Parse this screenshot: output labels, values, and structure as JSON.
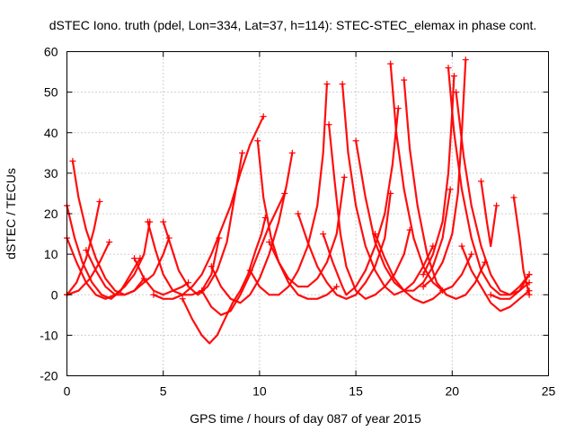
{
  "chart_data": {
    "type": "scatter",
    "title": "dSTEC Iono. truth (pdel, Lon=334, Lat=37, h=114): STEC-STEC_elemax in phase cont.",
    "xlabel": "GPS time / hours of day 087 of year 2015",
    "ylabel": "dSTEC  / TECUs",
    "xlim": [
      0,
      25
    ],
    "ylim": [
      -20,
      60
    ],
    "xticks": [
      0,
      5,
      10,
      15,
      20,
      25
    ],
    "yticks": [
      -20,
      -10,
      0,
      10,
      20,
      30,
      40,
      50,
      60
    ],
    "grid": true,
    "marker": "+",
    "color": "#ff0000",
    "series": [
      {
        "points": [
          [
            0.0,
            14
          ],
          [
            0.5,
            8
          ],
          [
            1.0,
            3
          ],
          [
            1.5,
            0
          ],
          [
            2.0,
            -1
          ],
          [
            2.5,
            0
          ],
          [
            3.0,
            2
          ],
          [
            3.5,
            5
          ],
          [
            4.0,
            10
          ],
          [
            4.3,
            18
          ]
        ]
      },
      {
        "points": [
          [
            0.0,
            22
          ],
          [
            0.4,
            14
          ],
          [
            0.8,
            8
          ],
          [
            1.3,
            3
          ],
          [
            1.8,
            0
          ],
          [
            2.3,
            -1
          ],
          [
            2.8,
            1
          ],
          [
            3.3,
            5
          ],
          [
            3.8,
            9
          ]
        ]
      },
      {
        "points": [
          [
            0.3,
            33
          ],
          [
            0.6,
            24
          ],
          [
            1.0,
            16
          ],
          [
            1.5,
            9
          ],
          [
            2.0,
            4
          ],
          [
            2.5,
            1
          ],
          [
            3.0,
            0
          ],
          [
            3.5,
            1
          ],
          [
            4.0,
            4
          ]
        ]
      },
      {
        "points": [
          [
            0.0,
            0
          ],
          [
            0.5,
            3
          ],
          [
            1.0,
            9
          ],
          [
            1.4,
            16
          ],
          [
            1.7,
            23
          ]
        ]
      },
      {
        "points": [
          [
            0.0,
            0
          ],
          [
            0.6,
            1
          ],
          [
            1.2,
            4
          ],
          [
            1.7,
            8
          ],
          [
            2.2,
            13
          ]
        ]
      },
      {
        "points": [
          [
            1.0,
            11
          ],
          [
            1.5,
            6
          ],
          [
            2.0,
            2
          ],
          [
            2.5,
            0
          ],
          [
            3.0,
            0
          ],
          [
            3.5,
            1
          ],
          [
            4.0,
            3
          ],
          [
            4.5,
            5
          ],
          [
            5.0,
            10
          ],
          [
            5.3,
            14
          ]
        ]
      },
      {
        "points": [
          [
            3.5,
            9
          ],
          [
            4.0,
            4
          ],
          [
            4.5,
            1
          ],
          [
            5.0,
            0
          ],
          [
            5.5,
            1
          ],
          [
            6.0,
            2
          ],
          [
            6.3,
            3
          ]
        ]
      },
      {
        "points": [
          [
            4.2,
            18
          ],
          [
            4.6,
            11
          ],
          [
            5.0,
            5
          ],
          [
            5.5,
            1
          ],
          [
            6.0,
            0
          ],
          [
            6.5,
            0
          ],
          [
            7.0,
            1
          ],
          [
            7.5,
            5
          ],
          [
            7.9,
            14
          ]
        ]
      },
      {
        "points": [
          [
            5.0,
            18
          ],
          [
            5.4,
            12
          ],
          [
            5.8,
            6
          ],
          [
            6.3,
            2
          ],
          [
            6.8,
            0
          ],
          [
            7.3,
            2
          ],
          [
            7.8,
            6
          ],
          [
            8.3,
            13
          ],
          [
            8.7,
            24
          ],
          [
            9.1,
            35
          ]
        ]
      },
      {
        "points": [
          [
            4.5,
            0
          ],
          [
            5.0,
            -1
          ],
          [
            5.5,
            -1
          ],
          [
            6.0,
            0
          ],
          [
            6.5,
            2
          ],
          [
            7.0,
            5
          ],
          [
            7.5,
            10
          ],
          [
            8.0,
            16
          ],
          [
            8.5,
            22
          ],
          [
            9.0,
            30
          ],
          [
            9.5,
            37
          ],
          [
            10.0,
            42
          ],
          [
            10.2,
            44
          ]
        ]
      },
      {
        "points": [
          [
            6.0,
            -1
          ],
          [
            6.5,
            -6
          ],
          [
            7.0,
            -10
          ],
          [
            7.4,
            -12
          ],
          [
            7.8,
            -10
          ],
          [
            8.2,
            -6
          ],
          [
            8.6,
            -2
          ],
          [
            9.0,
            1
          ],
          [
            9.4,
            5
          ],
          [
            9.8,
            11
          ],
          [
            10.1,
            15
          ],
          [
            10.3,
            19
          ]
        ]
      },
      {
        "points": [
          [
            7.0,
            1
          ],
          [
            7.5,
            -3
          ],
          [
            8.0,
            -5
          ],
          [
            8.5,
            -4
          ],
          [
            9.0,
            0
          ],
          [
            9.5,
            5
          ],
          [
            10.0,
            11
          ],
          [
            10.5,
            17
          ],
          [
            11.0,
            22
          ],
          [
            11.3,
            25
          ]
        ]
      },
      {
        "points": [
          [
            7.5,
            7
          ],
          [
            8.0,
            2
          ],
          [
            8.5,
            -1
          ],
          [
            9.0,
            -2
          ],
          [
            9.5,
            0
          ],
          [
            10.0,
            4
          ],
          [
            10.5,
            10
          ],
          [
            11.0,
            18
          ],
          [
            11.4,
            27
          ],
          [
            11.7,
            35
          ]
        ]
      },
      {
        "points": [
          [
            9.5,
            6
          ],
          [
            10.0,
            2
          ],
          [
            10.5,
            0
          ],
          [
            11.0,
            0
          ],
          [
            11.5,
            2
          ],
          [
            12.0,
            6
          ],
          [
            12.5,
            12
          ],
          [
            13.0,
            22
          ],
          [
            13.3,
            35
          ],
          [
            13.5,
            52
          ]
        ]
      },
      {
        "points": [
          [
            9.9,
            38
          ],
          [
            10.2,
            24
          ],
          [
            10.6,
            14
          ],
          [
            11.0,
            8
          ],
          [
            11.5,
            4
          ],
          [
            12.0,
            2
          ],
          [
            12.5,
            2
          ],
          [
            13.0,
            4
          ],
          [
            13.5,
            8
          ],
          [
            14.0,
            15
          ],
          [
            14.4,
            29
          ]
        ]
      },
      {
        "points": [
          [
            10.5,
            13
          ],
          [
            11.0,
            8
          ],
          [
            11.5,
            3
          ],
          [
            12.0,
            0
          ],
          [
            12.5,
            -1
          ],
          [
            13.0,
            -1
          ],
          [
            13.5,
            0
          ],
          [
            14.0,
            2
          ]
        ]
      },
      {
        "points": [
          [
            12.0,
            20
          ],
          [
            12.5,
            13
          ],
          [
            13.0,
            7
          ],
          [
            13.5,
            3
          ],
          [
            14.0,
            0
          ],
          [
            14.5,
            -1
          ],
          [
            15.0,
            0
          ],
          [
            15.5,
            3
          ],
          [
            16.0,
            7
          ],
          [
            16.5,
            14
          ],
          [
            16.8,
            25
          ]
        ]
      },
      {
        "points": [
          [
            13.3,
            15
          ],
          [
            13.8,
            8
          ],
          [
            14.3,
            2
          ],
          [
            14.5,
            0
          ],
          [
            15.0,
            2
          ],
          [
            15.5,
            6
          ],
          [
            16.0,
            12
          ],
          [
            16.5,
            20
          ],
          [
            16.9,
            32
          ],
          [
            17.2,
            46
          ]
        ]
      },
      {
        "points": [
          [
            13.6,
            42
          ],
          [
            13.9,
            28
          ],
          [
            14.2,
            15
          ],
          [
            14.5,
            7
          ],
          [
            15.0,
            1
          ],
          [
            15.5,
            -1
          ],
          [
            16.0,
            0
          ],
          [
            16.5,
            2
          ],
          [
            17.0,
            5
          ],
          [
            17.5,
            10
          ],
          [
            17.8,
            16
          ]
        ]
      },
      {
        "points": [
          [
            14.3,
            52
          ],
          [
            14.6,
            35
          ],
          [
            15.0,
            22
          ],
          [
            15.5,
            12
          ],
          [
            16.0,
            6
          ],
          [
            16.5,
            2
          ],
          [
            17.0,
            0
          ],
          [
            17.5,
            1
          ],
          [
            18.0,
            3
          ],
          [
            18.5,
            7
          ],
          [
            19.0,
            12
          ]
        ]
      },
      {
        "points": [
          [
            15.0,
            38
          ],
          [
            15.5,
            24
          ],
          [
            16.0,
            13
          ],
          [
            16.5,
            7
          ],
          [
            17.0,
            3
          ],
          [
            17.5,
            1
          ],
          [
            18.0,
            1
          ],
          [
            18.5,
            3
          ],
          [
            19.0,
            7
          ],
          [
            19.5,
            14
          ],
          [
            19.9,
            26
          ]
        ]
      },
      {
        "points": [
          [
            16.8,
            57
          ],
          [
            17.1,
            40
          ],
          [
            17.5,
            26
          ],
          [
            18.0,
            14
          ],
          [
            18.5,
            7
          ],
          [
            19.0,
            3
          ],
          [
            19.5,
            1
          ],
          [
            20.0,
            2
          ],
          [
            20.5,
            5
          ],
          [
            21.0,
            10
          ]
        ]
      },
      {
        "points": [
          [
            17.5,
            53
          ],
          [
            17.8,
            36
          ],
          [
            18.2,
            22
          ],
          [
            18.7,
            10
          ],
          [
            19.2,
            3
          ],
          [
            19.7,
            0
          ],
          [
            20.2,
            -1
          ],
          [
            20.7,
            0
          ],
          [
            21.2,
            3
          ],
          [
            21.7,
            8
          ]
        ]
      },
      {
        "points": [
          [
            16.0,
            15
          ],
          [
            16.5,
            9
          ],
          [
            17.0,
            4
          ],
          [
            17.5,
            1
          ],
          [
            18.0,
            -1
          ],
          [
            18.5,
            -2
          ],
          [
            19.0,
            -1
          ],
          [
            19.5,
            1
          ]
        ]
      },
      {
        "points": [
          [
            18.5,
            2
          ],
          [
            19.0,
            4
          ],
          [
            19.5,
            8
          ],
          [
            20.0,
            15
          ],
          [
            20.3,
            25
          ],
          [
            20.5,
            40
          ],
          [
            20.7,
            58
          ]
        ]
      },
      {
        "points": [
          [
            19.8,
            56
          ],
          [
            20.1,
            40
          ],
          [
            20.5,
            26
          ],
          [
            21.0,
            14
          ],
          [
            21.5,
            6
          ],
          [
            22.0,
            2
          ],
          [
            22.5,
            0
          ],
          [
            23.0,
            0
          ],
          [
            23.5,
            1
          ],
          [
            24.0,
            3
          ]
        ]
      },
      {
        "points": [
          [
            20.2,
            50
          ],
          [
            20.6,
            34
          ],
          [
            21.0,
            22
          ],
          [
            21.5,
            12
          ],
          [
            22.0,
            5
          ],
          [
            22.5,
            1
          ],
          [
            23.0,
            0
          ],
          [
            23.5,
            2
          ],
          [
            24.0,
            5
          ]
        ]
      },
      {
        "points": [
          [
            18.5,
            5
          ],
          [
            19.0,
            10
          ],
          [
            19.5,
            18
          ],
          [
            19.8,
            30
          ],
          [
            20.0,
            45
          ],
          [
            20.1,
            54
          ]
        ]
      },
      {
        "points": [
          [
            20.5,
            12
          ],
          [
            21.0,
            6
          ],
          [
            21.5,
            2
          ],
          [
            22.0,
            -2
          ],
          [
            22.5,
            -4
          ],
          [
            23.0,
            -3
          ],
          [
            23.5,
            -1
          ],
          [
            24.0,
            1
          ]
        ]
      },
      {
        "points": [
          [
            21.5,
            28
          ],
          [
            21.8,
            18
          ],
          [
            22.0,
            12
          ],
          [
            22.3,
            22
          ]
        ]
      },
      {
        "points": [
          [
            23.2,
            24
          ],
          [
            23.5,
            14
          ],
          [
            23.7,
            6
          ],
          [
            23.9,
            2
          ],
          [
            24.0,
            0
          ]
        ]
      },
      {
        "points": [
          [
            22.0,
            0
          ],
          [
            22.5,
            -1
          ],
          [
            23.0,
            -1
          ],
          [
            23.5,
            1
          ],
          [
            24.0,
            5
          ]
        ]
      }
    ]
  }
}
